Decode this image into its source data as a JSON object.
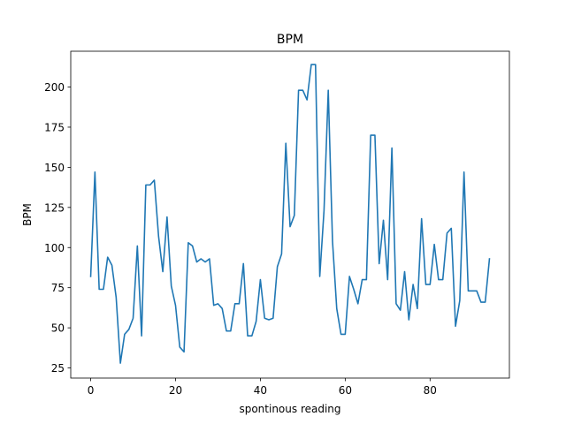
{
  "chart_data": {
    "type": "line",
    "title": "BPM",
    "xlabel": "spontinous reading",
    "ylabel": "BPM",
    "xlim": [
      -4.7,
      98.7
    ],
    "ylim": [
      18.7,
      222.3
    ],
    "xticks": [
      0,
      20,
      40,
      60,
      80
    ],
    "yticks": [
      25,
      50,
      75,
      100,
      125,
      150,
      175,
      200
    ],
    "grid": false,
    "line_color": "#1f77b4",
    "series": [
      {
        "x": [
          0,
          1,
          2,
          3,
          4,
          5,
          6,
          7,
          8,
          9,
          10,
          11,
          12,
          13,
          14,
          15,
          16,
          17,
          18,
          19,
          20,
          21,
          22,
          23,
          24,
          25,
          26,
          27,
          28,
          29,
          30,
          31,
          32,
          33,
          34,
          35,
          36,
          37,
          38,
          39,
          40,
          41,
          42,
          43,
          44,
          45,
          46,
          47,
          48,
          49,
          50,
          51,
          52,
          53,
          54,
          55,
          56,
          57,
          58,
          59,
          60,
          61,
          62,
          63,
          64,
          65,
          66,
          67,
          68,
          69,
          70,
          71,
          72,
          73,
          74,
          75,
          76,
          77,
          78,
          79,
          80,
          81,
          82,
          83,
          84,
          85,
          86,
          87,
          88,
          89,
          90,
          91,
          92,
          93,
          94
        ],
        "values": [
          82,
          147,
          74,
          74,
          94,
          89,
          69,
          28,
          46,
          49,
          56,
          101,
          45,
          139,
          139,
          142,
          107,
          85,
          119,
          76,
          64,
          38,
          35,
          103,
          101,
          91,
          93,
          91,
          93,
          64,
          65,
          62,
          48,
          48,
          65,
          65,
          90,
          45,
          45,
          54,
          80,
          56,
          55,
          56,
          88,
          96,
          165,
          113,
          120,
          198,
          198,
          192,
          214,
          214,
          82,
          123,
          198,
          104,
          62,
          46,
          46,
          82,
          74,
          65,
          80,
          80,
          170,
          170,
          90,
          117,
          80,
          162,
          65,
          61,
          85,
          55,
          77,
          62,
          118,
          77,
          77,
          102,
          80,
          80,
          109,
          112,
          51,
          67,
          147,
          73,
          73,
          73,
          66,
          66,
          93
        ]
      }
    ]
  }
}
